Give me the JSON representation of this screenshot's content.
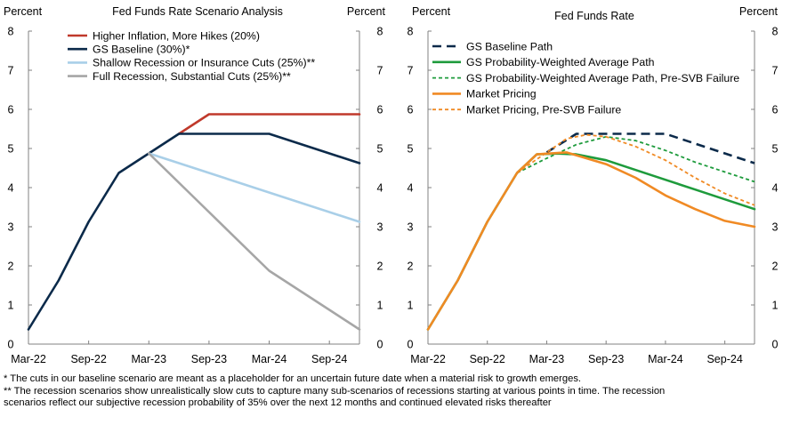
{
  "chart_data": [
    {
      "type": "line",
      "title": "Fed Funds Rate Scenario Analysis",
      "ylabel_left": "Percent",
      "ylabel_right": "Percent",
      "ylim": [
        0,
        8
      ],
      "yticks": [
        "0",
        "1",
        "2",
        "3",
        "4",
        "5",
        "6",
        "7",
        "8"
      ],
      "xlim": [
        0,
        33
      ],
      "xticks": [
        {
          "label": "Mar-22",
          "x": 0
        },
        {
          "label": "Sep-22",
          "x": 6
        },
        {
          "label": "Mar-23",
          "x": 12
        },
        {
          "label": "Sep-23",
          "x": 18
        },
        {
          "label": "Mar-24",
          "x": 24
        },
        {
          "label": "Sep-24",
          "x": 30
        }
      ],
      "legend_position": "top-left",
      "series": [
        {
          "name": "Higher Inflation, More Hikes (20%)",
          "color": "#c0392b",
          "dash": "solid",
          "points": [
            [
              15,
              5.375
            ],
            [
              18,
              5.875
            ],
            [
              33,
              5.875
            ]
          ]
        },
        {
          "name": "GS Baseline (30%)*",
          "color": "#0b2a4a",
          "dash": "solid",
          "points": [
            [
              0,
              0.375
            ],
            [
              3,
              1.625
            ],
            [
              6,
              3.125
            ],
            [
              9,
              4.375
            ],
            [
              12,
              4.875
            ],
            [
              15,
              5.375
            ],
            [
              24,
              5.375
            ],
            [
              33,
              4.625
            ]
          ]
        },
        {
          "name": "Shallow Recession or Insurance Cuts (25%)**",
          "color": "#a9cfe8",
          "dash": "solid",
          "points": [
            [
              12,
              4.875
            ],
            [
              33,
              3.125
            ]
          ]
        },
        {
          "name": "Full Recession, Substantial Cuts (25%)**",
          "color": "#a6a6a6",
          "dash": "solid",
          "points": [
            [
              12,
              4.875
            ],
            [
              18,
              3.375
            ],
            [
              24,
              1.875
            ],
            [
              33,
              0.375
            ]
          ]
        }
      ]
    },
    {
      "type": "line",
      "title": "Fed Funds Rate",
      "ylabel_left": "Percent",
      "ylabel_right": "Percent",
      "ylim": [
        0,
        8
      ],
      "yticks": [
        "0",
        "1",
        "2",
        "3",
        "4",
        "5",
        "6",
        "7",
        "8"
      ],
      "xlim": [
        0,
        33
      ],
      "xticks": [
        {
          "label": "Mar-22",
          "x": 0
        },
        {
          "label": "Sep-22",
          "x": 6
        },
        {
          "label": "Mar-23",
          "x": 12
        },
        {
          "label": "Sep-23",
          "x": 18
        },
        {
          "label": "Mar-24",
          "x": 24
        },
        {
          "label": "Sep-24",
          "x": 30
        }
      ],
      "legend_position": "top-left",
      "series": [
        {
          "name": "GS Baseline Path",
          "color": "#0b2a4a",
          "dash": "long-dash",
          "points": [
            [
              12,
              4.9
            ],
            [
              15,
              5.375
            ],
            [
              24,
              5.375
            ],
            [
              33,
              4.625
            ]
          ]
        },
        {
          "name": "GS Probability-Weighted Average Path",
          "color": "#1e9b3c",
          "dash": "solid",
          "points": [
            [
              0,
              0.375
            ],
            [
              3,
              1.625
            ],
            [
              6,
              3.125
            ],
            [
              9,
              4.375
            ],
            [
              11,
              4.85
            ],
            [
              13,
              4.87
            ],
            [
              15,
              4.85
            ],
            [
              18,
              4.7
            ],
            [
              21,
              4.45
            ],
            [
              24,
              4.2
            ],
            [
              27,
              3.95
            ],
            [
              30,
              3.7
            ],
            [
              33,
              3.45
            ]
          ]
        },
        {
          "name": "GS Probability-Weighted Average Path, Pre-SVB Failure",
          "color": "#1e9b3c",
          "dash": "short-dash",
          "points": [
            [
              9,
              4.375
            ],
            [
              12,
              4.75
            ],
            [
              15,
              5.1
            ],
            [
              18,
              5.3
            ],
            [
              21,
              5.2
            ],
            [
              24,
              4.95
            ],
            [
              27,
              4.65
            ],
            [
              30,
              4.4
            ],
            [
              33,
              4.15
            ]
          ]
        },
        {
          "name": "Market Pricing",
          "color": "#f08a24",
          "dash": "solid",
          "points": [
            [
              0,
              0.375
            ],
            [
              3,
              1.625
            ],
            [
              6,
              3.125
            ],
            [
              9,
              4.375
            ],
            [
              11,
              4.85
            ],
            [
              14,
              4.9
            ],
            [
              18,
              4.6
            ],
            [
              21,
              4.25
            ],
            [
              24,
              3.8
            ],
            [
              27,
              3.45
            ],
            [
              30,
              3.15
            ],
            [
              33,
              3.0
            ]
          ]
        },
        {
          "name": "Market Pricing, Pre-SVB Failure",
          "color": "#f08a24",
          "dash": "short-dash",
          "points": [
            [
              9,
              4.375
            ],
            [
              12,
              4.9
            ],
            [
              14,
              5.25
            ],
            [
              16,
              5.35
            ],
            [
              18,
              5.3
            ],
            [
              21,
              5.05
            ],
            [
              24,
              4.7
            ],
            [
              27,
              4.25
            ],
            [
              30,
              3.85
            ],
            [
              33,
              3.55
            ]
          ]
        }
      ]
    }
  ],
  "footnotes": [
    "* The cuts in our baseline scenario are meant as a placeholder for an uncertain future date when a material risk to growth emerges.",
    "** The recession scenarios show unrealistically slow cuts to capture many sub-scenarios of recessions starting at various points in time.  The recession",
    "scenarios reflect our subjective recession probability of 35% over the next 12 months and continued elevated risks thereafter"
  ]
}
